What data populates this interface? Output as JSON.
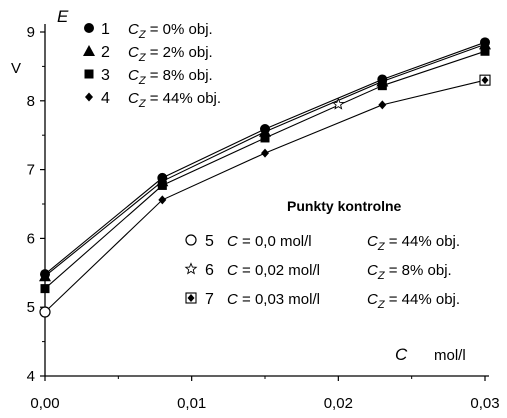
{
  "chart_data": {
    "type": "line",
    "ylabel": "E",
    "yunit": "V",
    "xlabel": "C",
    "xunit": "mol/l",
    "xlim": [
      0,
      0.03
    ],
    "ylim": [
      4,
      9
    ],
    "xticks": [
      "0,00",
      "0,01",
      "0,02",
      "0,03"
    ],
    "yticks": [
      "4",
      "5",
      "6",
      "7",
      "8",
      "9"
    ],
    "grid": false,
    "legend_position": "top-left",
    "series": [
      {
        "name": "C_Z = 0% obj.",
        "num": "1",
        "prefix": "C",
        "sub": "Z",
        "suffix": " = 0% obj.",
        "marker": "circle",
        "x": [
          0,
          0.008,
          0.015,
          0.023,
          0.03
        ],
        "y": [
          5.48,
          6.88,
          7.59,
          8.31,
          8.85
        ]
      },
      {
        "name": "C_Z = 2% obj.",
        "num": "2",
        "prefix": "C",
        "sub": "Z",
        "suffix": " = 2% obj.",
        "marker": "triangle",
        "x": [
          0,
          0.008,
          0.015,
          0.023,
          0.03
        ],
        "y": [
          5.45,
          6.83,
          7.55,
          8.28,
          8.82
        ]
      },
      {
        "name": "C_Z = 8% obj.",
        "num": "3",
        "prefix": "C",
        "sub": "Z",
        "suffix": " = 8% obj.",
        "marker": "square",
        "x": [
          0,
          0.008,
          0.015,
          0.023,
          0.03
        ],
        "y": [
          5.27,
          6.77,
          7.46,
          8.22,
          8.72
        ]
      },
      {
        "name": "C_Z = 44% obj.",
        "num": "4",
        "prefix": "C",
        "sub": "Z",
        "suffix": " = 44% obj.",
        "marker": "diamond",
        "x": [
          0,
          0.008,
          0.015,
          0.023,
          0.03
        ],
        "y": [
          4.93,
          6.56,
          7.24,
          7.94,
          8.3
        ]
      }
    ],
    "control_points": {
      "title": "Punkty kontrolne",
      "items": [
        {
          "num": "5",
          "marker": "open-circle",
          "c_label": "C = 0,0 mol/l",
          "cz_prefix": "C",
          "cz_sub": "Z",
          "cz_suffix": " = 44% obj.",
          "x": 0,
          "y": 4.93
        },
        {
          "num": "6",
          "marker": "star",
          "c_label": "C = 0,02 mol/l",
          "cz_prefix": "C",
          "cz_sub": "Z",
          "cz_suffix": " = 8% obj.",
          "x": 0.02,
          "y": 7.95
        },
        {
          "num": "7",
          "marker": "diamond-in-square",
          "c_label": "C = 0,03 mol/l",
          "cz_prefix": "C",
          "cz_sub": "Z",
          "cz_suffix": " = 44% obj.",
          "x": 0.03,
          "y": 8.3
        }
      ]
    }
  }
}
